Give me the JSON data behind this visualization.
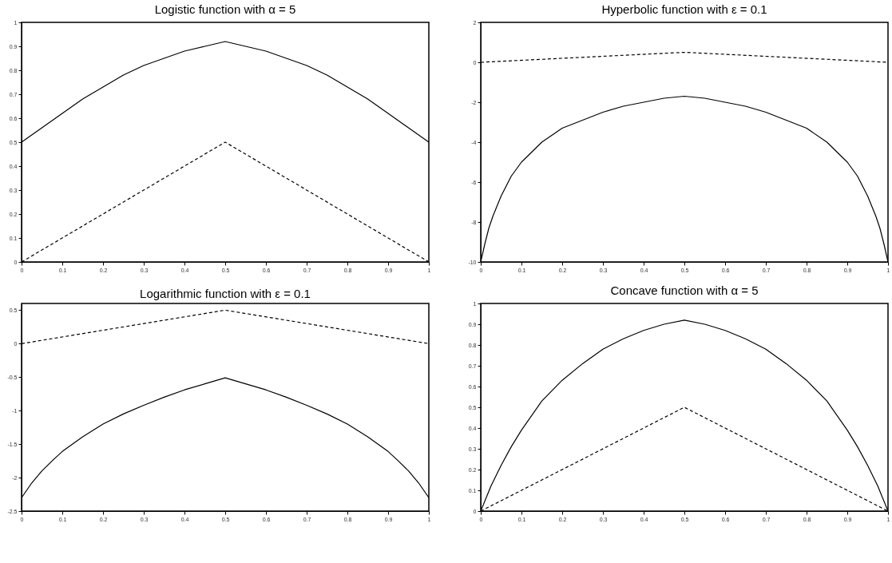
{
  "chart_data": [
    {
      "type": "line",
      "title": "Logistic function with α = 5",
      "xlim": [
        0,
        1
      ],
      "ylim": [
        0,
        1
      ],
      "xticks": [
        0,
        0.1,
        0.2,
        0.3,
        0.4,
        0.5,
        0.6,
        0.7,
        0.8,
        0.9,
        1
      ],
      "yticks": [
        0,
        0.1,
        0.2,
        0.3,
        0.4,
        0.5,
        0.6,
        0.7,
        0.8,
        0.9,
        1
      ],
      "series": [
        {
          "color": "#000000",
          "line_style": "solid",
          "x": [
            0,
            0.05,
            0.1,
            0.15,
            0.2,
            0.25,
            0.3,
            0.35,
            0.4,
            0.45,
            0.5,
            0.55,
            0.6,
            0.65,
            0.7,
            0.75,
            0.8,
            0.85,
            0.9,
            0.95,
            1
          ],
          "values": [
            0.5,
            0.56,
            0.62,
            0.68,
            0.73,
            0.78,
            0.82,
            0.85,
            0.88,
            0.9,
            0.92,
            0.9,
            0.88,
            0.85,
            0.82,
            0.78,
            0.73,
            0.68,
            0.62,
            0.56,
            0.5
          ]
        },
        {
          "color": "#000000",
          "line_style": "dashed",
          "x": [
            0,
            0.5,
            1
          ],
          "values": [
            0,
            0.5,
            0
          ]
        }
      ]
    },
    {
      "type": "line",
      "title": "Hyperbolic function with ε = 0.1",
      "xlim": [
        0,
        1
      ],
      "ylim": [
        -10,
        2
      ],
      "xticks": [
        0,
        0.1,
        0.2,
        0.3,
        0.4,
        0.5,
        0.6,
        0.7,
        0.8,
        0.9,
        1
      ],
      "yticks": [
        -10,
        -8,
        -6,
        -4,
        -2,
        0,
        2
      ],
      "series": [
        {
          "color": "#000000",
          "line_style": "solid",
          "x": [
            0,
            0.01,
            0.02,
            0.03,
            0.05,
            0.075,
            0.1,
            0.15,
            0.2,
            0.25,
            0.3,
            0.35,
            0.4,
            0.45,
            0.5,
            0.55,
            0.6,
            0.65,
            0.7,
            0.75,
            0.8,
            0.85,
            0.9,
            0.925,
            0.95,
            0.97,
            0.98,
            0.99,
            1
          ],
          "values": [
            -10,
            -9.1,
            -8.3,
            -7.7,
            -6.7,
            -5.7,
            -5,
            -4,
            -3.3,
            -2.9,
            -2.5,
            -2.2,
            -2,
            -1.8,
            -1.7,
            -1.8,
            -2,
            -2.2,
            -2.5,
            -2.9,
            -3.3,
            -4,
            -5,
            -5.7,
            -6.7,
            -7.7,
            -8.3,
            -9.1,
            -10
          ]
        },
        {
          "color": "#000000",
          "line_style": "dashed",
          "x": [
            0,
            0.5,
            1
          ],
          "values": [
            0,
            0.5,
            0
          ]
        }
      ]
    },
    {
      "type": "line",
      "title": "Logarithmic function with ε = 0.1",
      "xlim": [
        0,
        1
      ],
      "ylim": [
        -2.5,
        0.6
      ],
      "xticks": [
        0,
        0.1,
        0.2,
        0.3,
        0.4,
        0.5,
        0.6,
        0.7,
        0.8,
        0.9,
        1
      ],
      "yticks": [
        -2.5,
        -2,
        -1.5,
        -1,
        -0.5,
        0,
        0.5
      ],
      "series": [
        {
          "color": "#000000",
          "line_style": "solid",
          "x": [
            0,
            0.025,
            0.05,
            0.075,
            0.1,
            0.15,
            0.2,
            0.25,
            0.3,
            0.35,
            0.4,
            0.45,
            0.5,
            0.55,
            0.6,
            0.65,
            0.7,
            0.75,
            0.8,
            0.85,
            0.9,
            0.925,
            0.95,
            0.975,
            1
          ],
          "values": [
            -2.3,
            -2.08,
            -1.9,
            -1.75,
            -1.61,
            -1.39,
            -1.2,
            -1.05,
            -0.92,
            -0.8,
            -0.69,
            -0.6,
            -0.51,
            -0.6,
            -0.69,
            -0.8,
            -0.92,
            -1.05,
            -1.2,
            -1.39,
            -1.61,
            -1.75,
            -1.9,
            -2.08,
            -2.3
          ]
        },
        {
          "color": "#000000",
          "line_style": "dashed",
          "x": [
            0,
            0.5,
            1
          ],
          "values": [
            0,
            0.5,
            0
          ]
        }
      ]
    },
    {
      "type": "line",
      "title": "Concave function with α = 5",
      "xlim": [
        0,
        1
      ],
      "ylim": [
        0,
        1
      ],
      "xticks": [
        0,
        0.1,
        0.2,
        0.3,
        0.4,
        0.5,
        0.6,
        0.7,
        0.8,
        0.9,
        1
      ],
      "yticks": [
        0,
        0.1,
        0.2,
        0.3,
        0.4,
        0.5,
        0.6,
        0.7,
        0.8,
        0.9,
        1
      ],
      "series": [
        {
          "color": "#000000",
          "line_style": "solid",
          "x": [
            0,
            0.025,
            0.05,
            0.075,
            0.1,
            0.15,
            0.2,
            0.25,
            0.3,
            0.35,
            0.4,
            0.45,
            0.5,
            0.55,
            0.6,
            0.65,
            0.7,
            0.75,
            0.8,
            0.85,
            0.9,
            0.925,
            0.95,
            0.975,
            1
          ],
          "values": [
            0,
            0.12,
            0.22,
            0.31,
            0.39,
            0.53,
            0.63,
            0.71,
            0.78,
            0.83,
            0.87,
            0.9,
            0.92,
            0.9,
            0.87,
            0.83,
            0.78,
            0.71,
            0.63,
            0.53,
            0.39,
            0.31,
            0.22,
            0.12,
            0
          ]
        },
        {
          "color": "#000000",
          "line_style": "dashed",
          "x": [
            0,
            0.5,
            1
          ],
          "values": [
            0,
            0.5,
            0
          ]
        }
      ]
    }
  ]
}
